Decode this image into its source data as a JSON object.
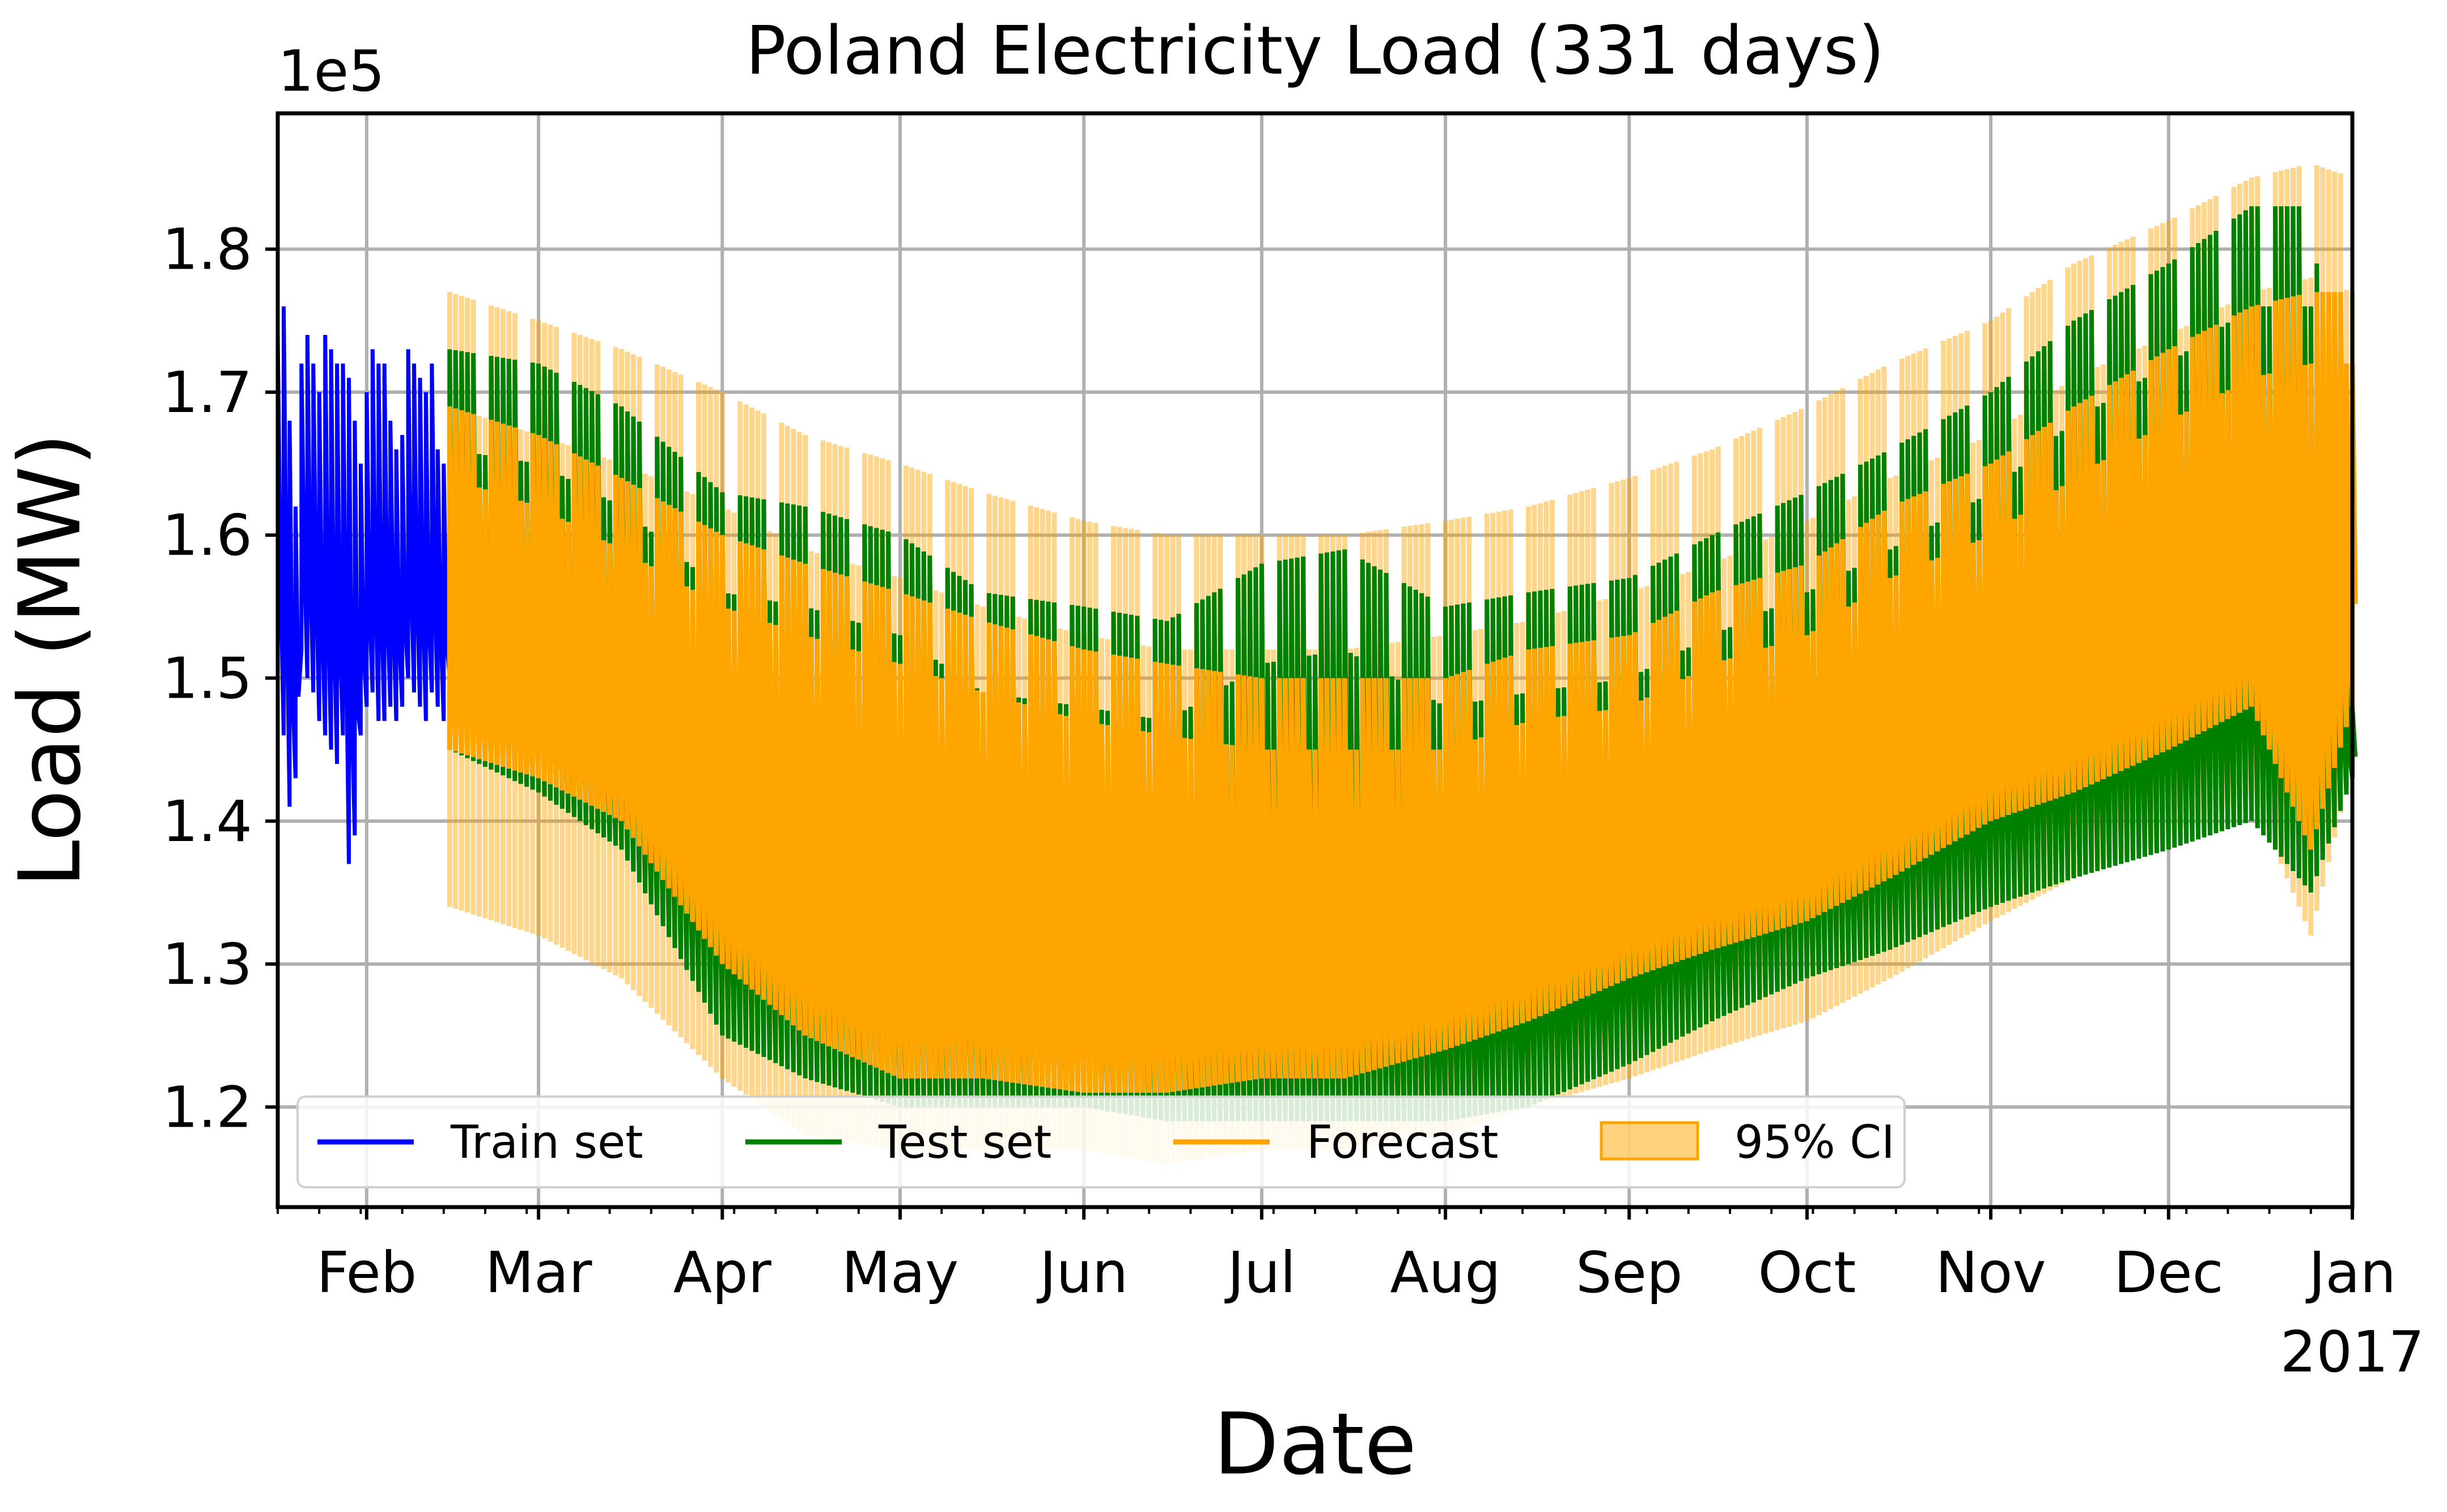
{
  "chart_data": {
    "type": "line",
    "title": "Poland Electricity Load (331 days)",
    "xlabel": "Date",
    "ylabel": "Load (MW)",
    "y_offset_label": "1e5",
    "ylim": [
      1.13,
      1.895
    ],
    "y_scale_factor": 100000,
    "xlim": [
      "2016-01-17",
      "2017-01-01"
    ],
    "grid": true,
    "legend_position": "lower-left",
    "y_ticks": [
      1.2,
      1.3,
      1.4,
      1.5,
      1.6,
      1.7,
      1.8
    ],
    "y_tick_labels": [
      "1.2",
      "1.3",
      "1.4",
      "1.5",
      "1.6",
      "1.7",
      "1.8"
    ],
    "x_ticks": [
      {
        "date": "2016-02-01",
        "label": "Feb"
      },
      {
        "date": "2016-03-01",
        "label": "Mar"
      },
      {
        "date": "2016-04-01",
        "label": "Apr"
      },
      {
        "date": "2016-05-01",
        "label": "May"
      },
      {
        "date": "2016-06-01",
        "label": "Jun"
      },
      {
        "date": "2016-07-01",
        "label": "Jul"
      },
      {
        "date": "2016-08-01",
        "label": "Aug"
      },
      {
        "date": "2016-09-01",
        "label": "Sep"
      },
      {
        "date": "2016-10-01",
        "label": "Oct"
      },
      {
        "date": "2016-11-01",
        "label": "Nov"
      },
      {
        "date": "2016-12-01",
        "label": "Dec"
      },
      {
        "date": "2017-01-01",
        "label": "Jan"
      }
    ],
    "x_year_label": "2017",
    "colors": {
      "train": "#0000ff",
      "test": "#008000",
      "forecast": "#ffa500",
      "ci": "#ffa500"
    },
    "legend": [
      {
        "label": "Train set",
        "kind": "line",
        "color": "#0000ff"
      },
      {
        "label": "Test set",
        "kind": "line",
        "color": "#008000"
      },
      {
        "label": "Forecast",
        "kind": "line",
        "color": "#ffa500"
      },
      {
        "label": "95% CI",
        "kind": "area",
        "color": "#ffa500"
      }
    ],
    "series": [
      {
        "name": "Train set",
        "x": [
          "2016-01-17",
          "2016-01-18",
          "2016-01-19",
          "2016-01-20",
          "2016-01-21",
          "2016-01-22",
          "2016-01-23",
          "2016-01-24",
          "2016-01-25",
          "2016-01-26",
          "2016-01-27",
          "2016-01-28",
          "2016-01-29",
          "2016-01-30",
          "2016-01-31",
          "2016-02-01",
          "2016-02-02",
          "2016-02-03",
          "2016-02-04",
          "2016-02-05",
          "2016-02-06",
          "2016-02-07",
          "2016-02-08",
          "2016-02-09",
          "2016-02-10",
          "2016-02-11",
          "2016-02-12",
          "2016-02-13",
          "2016-02-14",
          "2016-02-15",
          "2016-02-16"
        ],
        "max": [
          1.79,
          1.76,
          1.68,
          1.62,
          1.72,
          1.74,
          1.77,
          1.75,
          1.74,
          1.73,
          1.72,
          1.72,
          1.71,
          1.73,
          1.7,
          1.7,
          1.73,
          1.72,
          1.72,
          1.68,
          1.71,
          1.72,
          1.73,
          1.72,
          1.71,
          1.7,
          1.72,
          1.71,
          1.7,
          1.72,
          1.72
        ],
        "min": [
          1.49,
          1.46,
          1.41,
          1.43,
          1.52,
          1.5,
          1.49,
          1.47,
          1.46,
          1.45,
          1.44,
          1.46,
          1.37,
          1.39,
          1.46,
          1.48,
          1.49,
          1.47,
          1.47,
          1.48,
          1.47,
          1.48,
          1.5,
          1.49,
          1.48,
          1.47,
          1.49,
          1.48,
          1.47,
          1.5,
          1.5
        ]
      },
      {
        "name": "Test set",
        "x": [
          "2016-02-15",
          "2016-03-01",
          "2016-03-15",
          "2016-04-01",
          "2016-04-15",
          "2016-05-01",
          "2016-05-15",
          "2016-06-01",
          "2016-06-15",
          "2016-07-01",
          "2016-07-15",
          "2016-08-01",
          "2016-08-15",
          "2016-09-01",
          "2016-09-15",
          "2016-10-01",
          "2016-10-15",
          "2016-11-01",
          "2016-11-15",
          "2016-12-01",
          "2016-12-15",
          "2016-12-25",
          "2017-01-01"
        ],
        "max": [
          1.73,
          1.72,
          1.69,
          1.63,
          1.62,
          1.6,
          1.56,
          1.55,
          1.54,
          1.58,
          1.59,
          1.55,
          1.56,
          1.57,
          1.6,
          1.63,
          1.66,
          1.7,
          1.75,
          1.79,
          1.83,
          1.83,
          1.55
        ],
        "min": [
          1.45,
          1.42,
          1.38,
          1.25,
          1.22,
          1.2,
          1.2,
          1.2,
          1.19,
          1.19,
          1.19,
          1.19,
          1.2,
          1.23,
          1.26,
          1.29,
          1.31,
          1.34,
          1.36,
          1.38,
          1.4,
          1.35,
          1.43
        ]
      },
      {
        "name": "Forecast",
        "x": [
          "2016-02-15",
          "2016-03-01",
          "2016-03-15",
          "2016-04-01",
          "2016-04-15",
          "2016-05-01",
          "2016-05-15",
          "2016-06-01",
          "2016-06-15",
          "2016-07-01",
          "2016-07-15",
          "2016-08-01",
          "2016-08-15",
          "2016-09-01",
          "2016-09-15",
          "2016-10-01",
          "2016-10-15",
          "2016-11-01",
          "2016-11-15",
          "2016-12-01",
          "2016-12-15",
          "2016-12-25",
          "2017-01-01"
        ],
        "max": [
          1.69,
          1.67,
          1.64,
          1.6,
          1.58,
          1.56,
          1.54,
          1.52,
          1.51,
          1.5,
          1.5,
          1.5,
          1.52,
          1.53,
          1.56,
          1.58,
          1.62,
          1.65,
          1.69,
          1.73,
          1.76,
          1.77,
          1.77
        ],
        "min": [
          1.45,
          1.43,
          1.4,
          1.3,
          1.25,
          1.22,
          1.22,
          1.21,
          1.21,
          1.22,
          1.22,
          1.24,
          1.26,
          1.29,
          1.31,
          1.33,
          1.36,
          1.4,
          1.42,
          1.45,
          1.48,
          1.38,
          1.48
        ]
      },
      {
        "name": "95% CI",
        "x": [
          "2016-02-15",
          "2016-03-01",
          "2016-03-15",
          "2016-04-01",
          "2016-04-15",
          "2016-05-01",
          "2016-05-15",
          "2016-06-01",
          "2016-06-15",
          "2016-07-01",
          "2016-07-15",
          "2016-08-01",
          "2016-08-15",
          "2016-09-01",
          "2016-09-15",
          "2016-10-01",
          "2016-10-15",
          "2016-11-01",
          "2016-11-15",
          "2016-12-01",
          "2016-12-15",
          "2016-12-25",
          "2017-01-01"
        ],
        "upper": [
          1.77,
          1.75,
          1.73,
          1.7,
          1.67,
          1.65,
          1.63,
          1.61,
          1.6,
          1.6,
          1.6,
          1.61,
          1.62,
          1.64,
          1.66,
          1.69,
          1.72,
          1.75,
          1.79,
          1.82,
          1.85,
          1.86,
          1.85
        ],
        "lower": [
          1.34,
          1.32,
          1.29,
          1.22,
          1.18,
          1.17,
          1.17,
          1.17,
          1.16,
          1.17,
          1.17,
          1.18,
          1.2,
          1.22,
          1.24,
          1.26,
          1.29,
          1.33,
          1.36,
          1.39,
          1.42,
          1.32,
          1.44
        ]
      }
    ]
  }
}
